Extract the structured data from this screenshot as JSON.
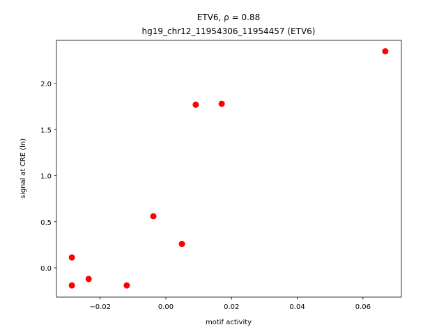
{
  "chart_data": {
    "type": "scatter",
    "title": "ETV6, ρ = 0.88",
    "subtitle": "hg19_chr12_11954306_11954457 (ETV6)",
    "x_label": "motif activity",
    "y_label": "signal at CRE (ln)",
    "color": "#ff0000",
    "x": [
      -0.0286,
      -0.0286,
      -0.0235,
      -0.0119,
      -0.0038,
      0.0049,
      0.0091,
      0.017,
      0.0668
    ],
    "values": [
      0.113,
      -0.19,
      -0.12,
      -0.19,
      0.56,
      0.26,
      1.77,
      1.78,
      2.35
    ],
    "xlim": [
      -0.0333,
      0.0717
    ],
    "ylim": [
      -0.317,
      2.468
    ],
    "xticks": [
      {
        "value": -0.02,
        "label": "−0.02"
      },
      {
        "value": 0,
        "label": "0.00"
      },
      0.02,
      0.04,
      0.06
    ],
    "yticks": [
      {
        "value": 0,
        "label": "0.0"
      },
      0.5,
      {
        "value": 1,
        "label": "1.0"
      },
      1.5,
      {
        "value": 2,
        "label": "2.0"
      }
    ]
  }
}
